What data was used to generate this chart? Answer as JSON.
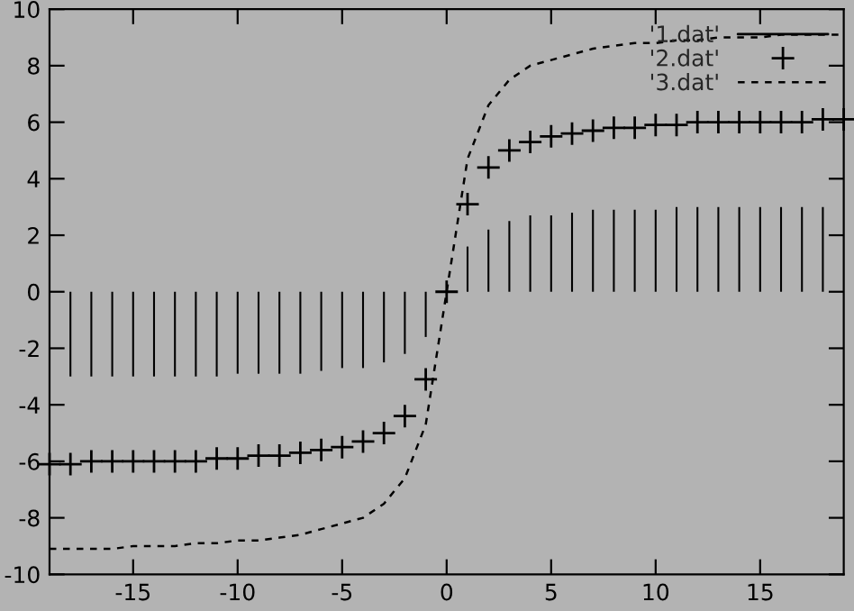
{
  "chart_data": {
    "type": "line",
    "x": [
      -19,
      -18,
      -17,
      -16,
      -15,
      -14,
      -13,
      -12,
      -11,
      -10,
      -9,
      -8,
      -7,
      -6,
      -5,
      -4,
      -3,
      -2,
      -1,
      0,
      1,
      2,
      3,
      4,
      5,
      6,
      7,
      8,
      9,
      10,
      11,
      12,
      13,
      14,
      15,
      16,
      17,
      18,
      19
    ],
    "series": [
      {
        "name": "'1.dat'",
        "type": "bar",
        "color": "#000000",
        "values": [
          null,
          -3.0,
          -3.0,
          -3.0,
          -3.0,
          -3.0,
          -3.0,
          -3.0,
          -3.0,
          -2.9,
          -2.9,
          -2.9,
          -2.9,
          -2.8,
          -2.7,
          -2.7,
          -2.5,
          -2.2,
          -1.6,
          0,
          1.6,
          2.2,
          2.5,
          2.7,
          2.7,
          2.8,
          2.9,
          2.9,
          2.9,
          2.9,
          3.0,
          3.0,
          3.0,
          3.0,
          3.0,
          3.0,
          3.0,
          3.0,
          null
        ]
      },
      {
        "name": "'2.dat'",
        "type": "scatter",
        "marker": "cross",
        "color": "#000000",
        "values": [
          -6.1,
          -6.1,
          -6.0,
          -6.0,
          -6.0,
          -6.0,
          -6.0,
          -6.0,
          -5.9,
          -5.9,
          -5.8,
          -5.8,
          -5.7,
          -5.6,
          -5.5,
          -5.3,
          -5.0,
          -4.4,
          -3.1,
          0,
          3.1,
          4.4,
          5.0,
          5.3,
          5.5,
          5.6,
          5.7,
          5.8,
          5.8,
          5.9,
          5.9,
          6.0,
          6.0,
          6.0,
          6.0,
          6.0,
          6.0,
          6.1,
          6.1
        ]
      },
      {
        "name": "'3.dat'",
        "line_style": "dashed",
        "color": "#000000",
        "values": [
          -9.1,
          -9.1,
          -9.1,
          -9.1,
          -9.0,
          -9.0,
          -9.0,
          -8.9,
          -8.9,
          -8.8,
          -8.8,
          -8.7,
          -8.6,
          -8.4,
          -8.2,
          -8.0,
          -7.5,
          -6.6,
          -4.7,
          0,
          4.7,
          6.6,
          7.5,
          8.0,
          8.2,
          8.4,
          8.6,
          8.7,
          8.8,
          8.8,
          8.9,
          8.9,
          9.0,
          9.0,
          9.0,
          9.1,
          9.1,
          9.1,
          9.1
        ]
      }
    ],
    "xlim": [
      -19,
      19
    ],
    "xticks": [
      -15,
      -10,
      -5,
      0,
      5,
      10,
      15
    ],
    "ylim": [
      -10,
      10
    ],
    "yticks": [
      -10,
      -8,
      -6,
      -4,
      -2,
      0,
      2,
      4,
      6,
      8,
      10
    ],
    "grid": false,
    "legend": "top right"
  }
}
